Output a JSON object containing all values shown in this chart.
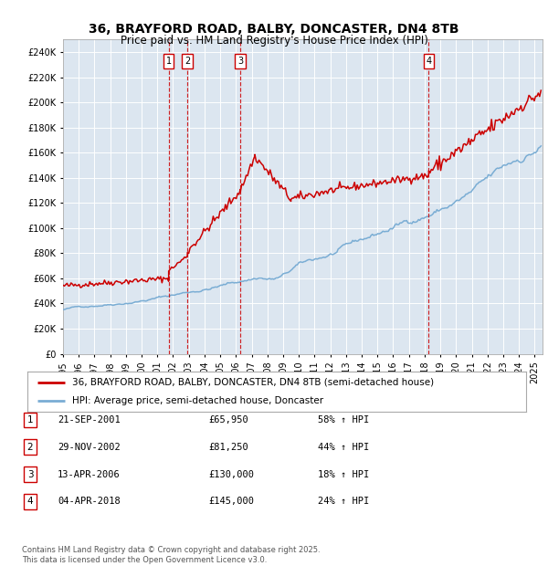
{
  "title_line1": "36, BRAYFORD ROAD, BALBY, DONCASTER, DN4 8TB",
  "title_line2": "Price paid vs. HM Land Registry's House Price Index (HPI)",
  "plot_bg_color": "#dce6f0",
  "legend_line1": "36, BRAYFORD ROAD, BALBY, DONCASTER, DN4 8TB (semi-detached house)",
  "legend_line2": "HPI: Average price, semi-detached house, Doncaster",
  "red_color": "#cc0000",
  "blue_color": "#7aadd4",
  "footnote": "Contains HM Land Registry data © Crown copyright and database right 2025.\nThis data is licensed under the Open Government Licence v3.0.",
  "transactions": [
    {
      "num": 1,
      "date": "21-SEP-2001",
      "price": "£65,950",
      "pct": "58% ↑ HPI",
      "year": 2001.72
    },
    {
      "num": 2,
      "date": "29-NOV-2002",
      "price": "£81,250",
      "pct": "44% ↑ HPI",
      "year": 2002.91
    },
    {
      "num": 3,
      "date": "13-APR-2006",
      "price": "£130,000",
      "pct": "18% ↑ HPI",
      "year": 2006.28
    },
    {
      "num": 4,
      "date": "04-APR-2018",
      "price": "£145,000",
      "pct": "24% ↑ HPI",
      "year": 2018.26
    }
  ],
  "ylim": [
    0,
    250000
  ],
  "yticks": [
    0,
    20000,
    40000,
    60000,
    80000,
    100000,
    120000,
    140000,
    160000,
    180000,
    200000,
    220000,
    240000
  ],
  "xlim_start": 1995.0,
  "xlim_end": 2025.5
}
